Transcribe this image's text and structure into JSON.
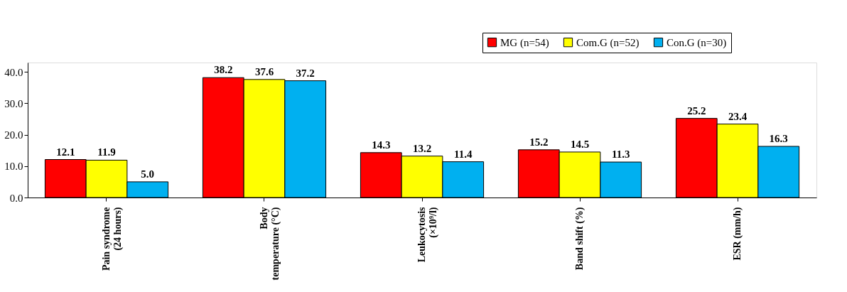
{
  "chart_data": {
    "type": "bar",
    "categories": [
      "Pain syndrome\n(24 hours)",
      "Body\ntemperature (°C)",
      "Leukocytosis\n(×10⁹/l)",
      "Band shift (%)",
      "ESR (mm/h)"
    ],
    "series": [
      {
        "name": "MG (n=54)",
        "color": "#ff0000",
        "values": [
          12.1,
          38.2,
          14.3,
          15.2,
          25.2
        ],
        "value_labels": [
          "12.1",
          "38.2",
          "14.3",
          "15.2",
          "25.2"
        ]
      },
      {
        "name": "Com.G (n=52)",
        "color": "#ffff00",
        "values": [
          11.9,
          37.6,
          13.2,
          14.5,
          23.4
        ],
        "value_labels": [
          "11.9",
          "37.6",
          "13.2",
          "14.5",
          "23.4"
        ]
      },
      {
        "name": "Con.G (n=30)",
        "color": "#00b0f0",
        "values": [
          5.0,
          37.2,
          11.4,
          11.3,
          16.3
        ],
        "value_labels": [
          "5.0",
          "37.2",
          "11.4",
          "11.3",
          "16.3"
        ]
      }
    ],
    "ylim": [
      0,
      43
    ],
    "yticks": [
      {
        "value": 0,
        "label": "0.0"
      },
      {
        "value": 10,
        "label": "10.0"
      },
      {
        "value": 20,
        "label": "20.0"
      },
      {
        "value": 30,
        "label": "30.0"
      },
      {
        "value": 40,
        "label": "40.0"
      }
    ],
    "legend": "top right",
    "grid": false
  }
}
